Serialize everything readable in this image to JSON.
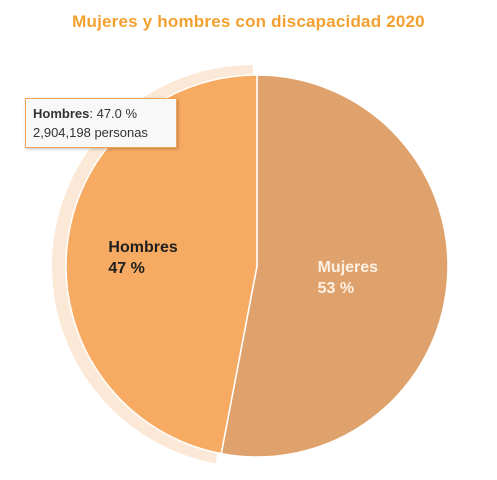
{
  "chart_data": {
    "type": "pie",
    "title": "Mujeres y hombres con discapacidad 2020",
    "categories": [
      "Mujeres",
      "Hombres"
    ],
    "values": [
      53,
      47
    ],
    "labels": [
      {
        "name": "Mujeres",
        "text": "53 %"
      },
      {
        "name": "Hombres",
        "text": "47 %"
      }
    ],
    "tooltip": {
      "name": "Hombres",
      "value_text": "47.0 %",
      "detail": "2,904,198 personas"
    },
    "highlighted": "Hombres"
  },
  "colors": {
    "title": "#f4a030",
    "mujeres": "#e0a26c",
    "hombres": "#f7aa62",
    "halo": "#fbe8d6",
    "label_mujeres": "#fdf1e4",
    "label_hombres": "#1f1f1f"
  }
}
